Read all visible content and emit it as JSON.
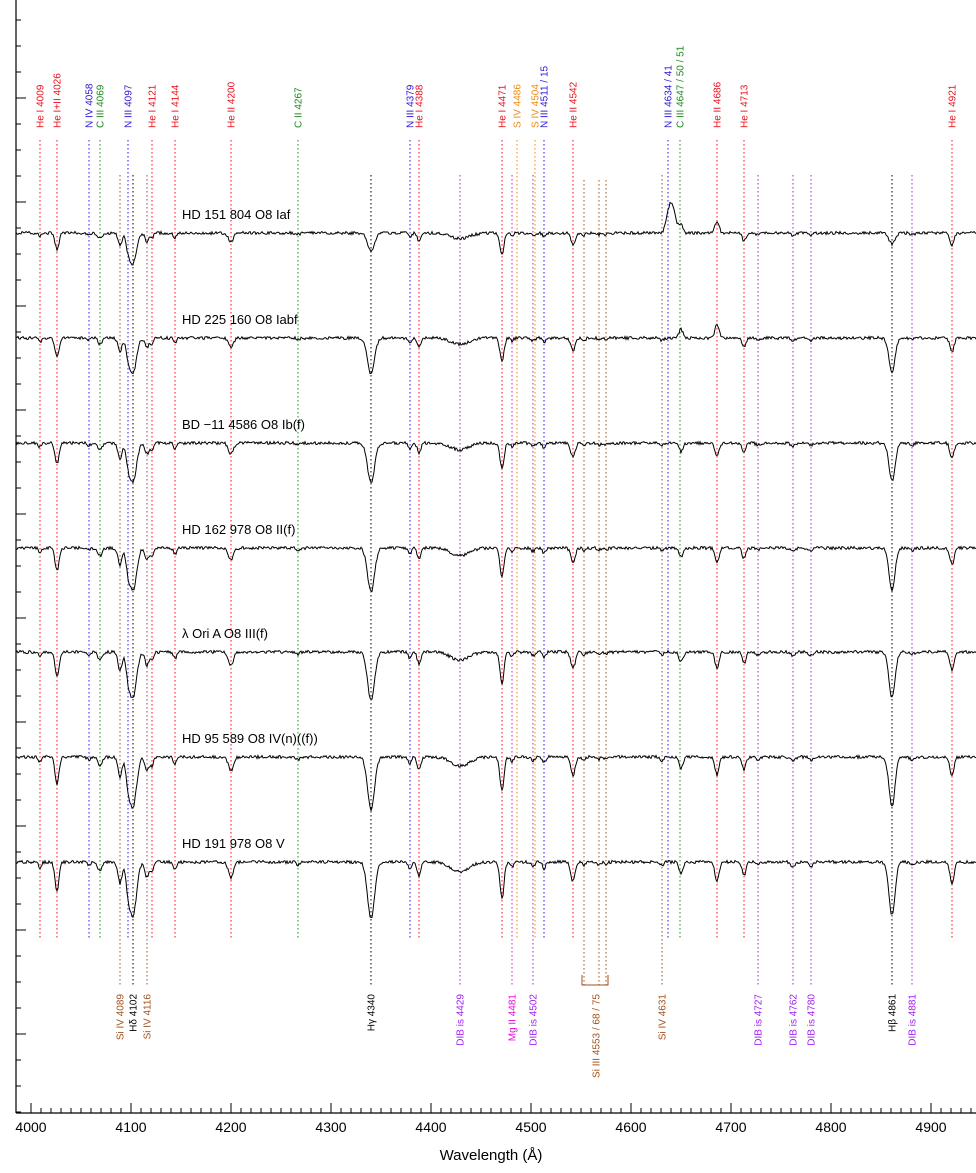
{
  "chart_data": {
    "type": "line",
    "xlabel": "Wavelength (Å)",
    "ylabel": "",
    "xlim": [
      3985,
      4945
    ],
    "xticks": [
      4000,
      4100,
      4200,
      4300,
      4400,
      4500,
      4600,
      4700,
      4800,
      4900
    ],
    "xtick_labels": [
      "4000",
      "4100",
      "4200",
      "4300",
      "4400",
      "4500",
      "4600",
      "4700",
      "4800",
      "4900"
    ],
    "colors": {
      "He": "#e8101c",
      "N": "#2a17d6",
      "C": "#1c8a1c",
      "S": "#f08a10",
      "Si": "#a0521e",
      "DIB": "#a020f0",
      "Mg": "#e010d8",
      "H": "#000000",
      "spectrum": "#000000"
    },
    "top_lines": [
      {
        "label": "He I 4009",
        "wl": 4009,
        "color": "He"
      },
      {
        "label": "He I+II 4026",
        "wl": 4026,
        "color": "He"
      },
      {
        "label": "N IV 4058",
        "wl": 4058,
        "color": "N"
      },
      {
        "label": "C III 4069",
        "wl": 4069,
        "color": "C"
      },
      {
        "label": "N III 4097",
        "wl": 4097,
        "color": "N"
      },
      {
        "label": "He I 4121",
        "wl": 4121,
        "color": "He"
      },
      {
        "label": "He I 4144",
        "wl": 4144,
        "color": "He"
      },
      {
        "label": "He II 4200",
        "wl": 4200,
        "color": "He"
      },
      {
        "label": "C II 4267",
        "wl": 4267,
        "color": "C"
      },
      {
        "label": "N III 4379",
        "wl": 4379,
        "color": "N"
      },
      {
        "label": "He I 4388",
        "wl": 4388,
        "color": "He"
      },
      {
        "label": "He I 4471",
        "wl": 4471,
        "color": "He"
      },
      {
        "label": "S IV 4486",
        "wl": 4486,
        "color": "S"
      },
      {
        "label": "S IV 4504",
        "wl": 4504,
        "color": "S"
      },
      {
        "label": "N III 4511 / 15",
        "wl": 4513,
        "color": "N"
      },
      {
        "label": "He II 4542",
        "wl": 4542,
        "color": "He"
      },
      {
        "label": "N III 4634 / 41",
        "wl": 4637,
        "color": "N"
      },
      {
        "label": "C III 4647 / 50 / 51",
        "wl": 4649,
        "color": "C"
      },
      {
        "label": "He II 4686",
        "wl": 4686,
        "color": "He"
      },
      {
        "label": "He I 4713",
        "wl": 4713,
        "color": "He"
      },
      {
        "label": "He I 4921",
        "wl": 4921,
        "color": "He"
      }
    ],
    "bottom_lines": [
      {
        "label": "Si IV 4089",
        "wl": 4089,
        "color": "Si"
      },
      {
        "label": "Hδ 4102",
        "wl": 4102,
        "color": "H"
      },
      {
        "label": "Si IV 4116",
        "wl": 4116,
        "color": "Si"
      },
      {
        "label": "Hγ 4340",
        "wl": 4340,
        "color": "H"
      },
      {
        "label": "DIB is 4429",
        "wl": 4429,
        "color": "DIB"
      },
      {
        "label": "Mg II 4481",
        "wl": 4481,
        "color": "Mg"
      },
      {
        "label": "DIB is 4502",
        "wl": 4502,
        "color": "DIB"
      },
      {
        "label": "Si III 4553 / 68 / 75",
        "wl": 4565,
        "color": "Si"
      },
      {
        "label": "Si IV 4631",
        "wl": 4631,
        "color": "Si"
      },
      {
        "label": "DIB is 4727",
        "wl": 4727,
        "color": "DIB"
      },
      {
        "label": "DIB is 4762",
        "wl": 4762,
        "color": "DIB"
      },
      {
        "label": "DIB is 4780",
        "wl": 4780,
        "color": "DIB"
      },
      {
        "label": "Hβ 4861",
        "wl": 4861,
        "color": "H"
      },
      {
        "label": "DIB is 4881",
        "wl": 4881,
        "color": "DIB"
      }
    ],
    "series": [
      {
        "name": "HD 151 804   O8 Iaf",
        "emission": true
      },
      {
        "name": "HD 225 160   O8 Iabf",
        "emission": true
      },
      {
        "name": "BD −11 4586   O8 Ib(f)",
        "emission": false
      },
      {
        "name": "HD 162 978   O8 II(f)",
        "emission": false
      },
      {
        "name": "λ Ori A   O8 III(f)",
        "emission": false
      },
      {
        "name": "HD 95 589   O8 IV(n)((f))",
        "emission": false
      },
      {
        "name": "HD 191 978   O8 V",
        "emission": false
      }
    ]
  }
}
